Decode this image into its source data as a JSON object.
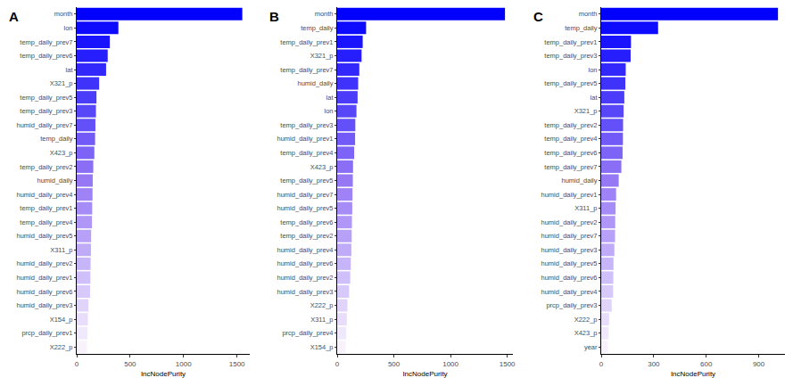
{
  "chart_data": [
    {
      "type": "bar",
      "title": "A",
      "orientation": "horizontal",
      "x_label": "IncNodePurity",
      "grid": false,
      "categories": [
        "month",
        "lon",
        "temp_daily_prev7",
        "temp_daily_prev6",
        "lat",
        "X321_p",
        "temp_daily_prev5",
        "temp_daily_prev3",
        "humid_daily_prev7",
        "temp_daily",
        "X423_p",
        "temp_daily_prev2",
        "humid_daily",
        "humid_daily_prev4",
        "temp_daily_prev1",
        "temp_daily_prev4",
        "humid_daily_prev5",
        "X311_p",
        "humid_daily_prev2",
        "humid_daily_prev1",
        "humid_daily_prev6",
        "humid_daily_prev3",
        "X154_p",
        "prcp_daily_prev1",
        "X222_p"
      ],
      "values": [
        1550,
        390,
        310,
        290,
        275,
        210,
        185,
        180,
        175,
        172,
        165,
        155,
        150,
        148,
        145,
        143,
        135,
        133,
        130,
        128,
        125,
        110,
        105,
        100,
        95
      ],
      "colors": [
        "#0000ff",
        "#0d0afe",
        "#1914fd",
        "#261efc",
        "#3228fc",
        "#3f32fb",
        "#4b3cfa",
        "#5846f9",
        "#6450f8",
        "#715af7",
        "#7d64f7",
        "#8a6ef6",
        "#9678f5",
        "#9e82f6",
        "#a68cf6",
        "#af96f7",
        "#b7a1f8",
        "#bfabf8",
        "#c7b5f9",
        "#cfbffa",
        "#d7c9fa",
        "#e0d4fb",
        "#e8defc",
        "#f0e8fc",
        "#f8f2fd"
      ],
      "xlim": [
        0,
        1620
      ],
      "xticks": [
        0,
        500,
        1000,
        1500
      ]
    },
    {
      "type": "bar",
      "title": "B",
      "orientation": "horizontal",
      "x_label": "IncNodePurity",
      "grid": false,
      "categories": [
        "month",
        "temp_daily",
        "temp_daily_prev1",
        "X321_p",
        "temp_daily_prev7",
        "humid_daily",
        "lat",
        "lon",
        "temp_daily_prev3",
        "humid_daily_prev1",
        "temp_daily_prev4",
        "X423_p",
        "temp_daily_prev5",
        "humid_daily_prev7",
        "humid_daily_prev5",
        "temp_daily_prev6",
        "temp_daily_prev2",
        "humid_daily_prev4",
        "humid_daily_prev6",
        "humid_daily_prev2",
        "humid_daily_prev3",
        "X222_p",
        "X311_p",
        "prcp_daily_prev4",
        "X154_p"
      ],
      "values": [
        1480,
        255,
        225,
        215,
        195,
        185,
        180,
        170,
        160,
        158,
        150,
        140,
        138,
        135,
        133,
        130,
        128,
        125,
        120,
        115,
        105,
        90,
        85,
        80,
        75
      ],
      "colors": [
        "#0000ff",
        "#0d0afe",
        "#1914fd",
        "#261efc",
        "#3228fc",
        "#3f32fb",
        "#4b3cfa",
        "#5846f9",
        "#6450f8",
        "#715af7",
        "#7d64f7",
        "#8a6ef6",
        "#9678f5",
        "#9e82f6",
        "#a68cf6",
        "#af96f7",
        "#b7a1f8",
        "#bfabf8",
        "#c7b5f9",
        "#cfbffa",
        "#d7c9fa",
        "#e0d4fb",
        "#e8defc",
        "#f0e8fc",
        "#f8f2fd"
      ],
      "xlim": [
        0,
        1550
      ],
      "xticks": [
        0,
        500,
        1000,
        1500
      ]
    },
    {
      "type": "bar",
      "title": "C",
      "orientation": "horizontal",
      "x_label": "IncNodePurity",
      "grid": false,
      "categories": [
        "month",
        "temp_daily",
        "temp_daily_prev1",
        "temp_daily_prev3",
        "lon",
        "temp_daily_prev5",
        "lat",
        "X321_p",
        "temp_daily_prev2",
        "temp_daily_prev4",
        "temp_daily_prev6",
        "temp_daily_prev7",
        "humid_daily",
        "humid_daily_prev1",
        "X311_p",
        "humid_daily_prev2",
        "humid_daily_prev7",
        "humid_daily_prev3",
        "humid_daily_prev5",
        "humid_daily_prev6",
        "humid_daily_prev4",
        "prcp_daily_prev3",
        "X222_p",
        "X423_p",
        "year"
      ],
      "values": [
        1010,
        325,
        170,
        168,
        140,
        138,
        132,
        128,
        125,
        124,
        122,
        115,
        100,
        85,
        82,
        80,
        79,
        75,
        70,
        69,
        68,
        60,
        45,
        42,
        38
      ],
      "colors": [
        "#0000ff",
        "#0d0afe",
        "#1914fd",
        "#261efc",
        "#3228fc",
        "#3f32fb",
        "#4b3cfa",
        "#5846f9",
        "#6450f8",
        "#715af7",
        "#7d64f7",
        "#8a6ef6",
        "#9678f5",
        "#9e82f6",
        "#a68cf6",
        "#af96f7",
        "#b7a1f8",
        "#bfabf8",
        "#c7b5f9",
        "#cfbffa",
        "#d7c9fa",
        "#e0d4fb",
        "#e8defc",
        "#f0e8fc",
        "#f8f2fd"
      ],
      "xlim": [
        0,
        1050
      ],
      "xticks": [
        0,
        300,
        600,
        900
      ]
    }
  ]
}
